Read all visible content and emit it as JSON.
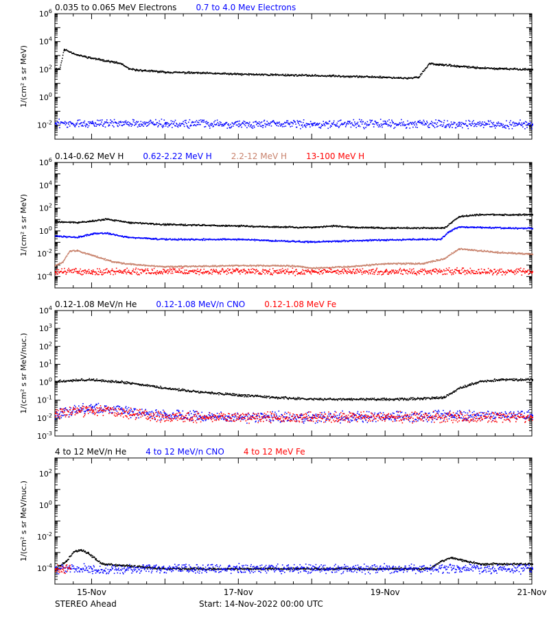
{
  "chart_data": [
    {
      "type": "scatter",
      "ylabel": "1/(cm² s sr MeV)",
      "yscale": "log",
      "ylim": [
        0.001,
        1000000
      ],
      "ytick_labels": [
        "10^-2",
        "10^0",
        "10^2",
        "10^4",
        "10^6"
      ],
      "series": [
        {
          "name": "0.035 to 0.065 MeV Electrons",
          "color": "#000000",
          "x": [
            0.5,
            0.56,
            0.62,
            0.7,
            0.8,
            1.0,
            1.2,
            1.4,
            1.5,
            1.6,
            2.0,
            2.5,
            3.0,
            3.5,
            4.0,
            4.5,
            5.0,
            5.3,
            5.45,
            5.6,
            5.7,
            5.8,
            6.0,
            6.3,
            6.6,
            7.0
          ],
          "values": [
            120,
            120,
            3000,
            2000,
            1200,
            700,
            450,
            280,
            120,
            100,
            70,
            60,
            50,
            45,
            40,
            35,
            30,
            25,
            30,
            300,
            250,
            230,
            180,
            140,
            120,
            110
          ]
        },
        {
          "name": "0.7 to 4.0 Mev Electrons",
          "color": "#0000ff",
          "x": [
            0.5,
            1.0,
            2.0,
            3.0,
            4.0,
            5.0,
            6.0,
            7.0
          ],
          "values": [
            0.015,
            0.015,
            0.014,
            0.014,
            0.013,
            0.014,
            0.013,
            0.013
          ]
        }
      ]
    },
    {
      "type": "scatter",
      "ylabel": "1/(cm² s sr MeV)",
      "yscale": "log",
      "ylim": [
        1e-05,
        1000000
      ],
      "ytick_labels": [
        "10^-4",
        "10^-2",
        "10^0",
        "10^2",
        "10^4",
        "10^6"
      ],
      "series": [
        {
          "name": "0.14-0.62 MeV H",
          "color": "#000000",
          "x": [
            0.5,
            0.8,
            1.0,
            1.2,
            1.5,
            2.0,
            2.5,
            3.0,
            3.5,
            4.0,
            4.3,
            4.6,
            5.0,
            5.5,
            5.8,
            5.9,
            6.0,
            6.3,
            6.6,
            7.0
          ],
          "values": [
            7,
            6,
            8,
            12,
            6,
            4,
            3.5,
            3,
            2.5,
            2.2,
            3,
            2.2,
            2,
            2,
            2,
            6,
            20,
            30,
            28,
            30
          ]
        },
        {
          "name": "0.62-2.22 MeV H",
          "color": "#0000ff",
          "x": [
            0.5,
            0.8,
            1.0,
            1.2,
            1.5,
            2.0,
            2.5,
            3.0,
            3.5,
            4.0,
            4.5,
            5.0,
            5.5,
            5.75,
            5.85,
            6.0,
            6.3,
            6.6,
            7.0
          ],
          "values": [
            0.4,
            0.3,
            0.6,
            0.7,
            0.3,
            0.2,
            0.2,
            0.2,
            0.15,
            0.12,
            0.15,
            0.18,
            0.2,
            0.2,
            0.8,
            2.5,
            2.2,
            2,
            1.8
          ]
        },
        {
          "name": "2.2-12 MeV H",
          "color": "#c8826c",
          "x": [
            0.5,
            0.6,
            0.7,
            0.8,
            1.0,
            1.3,
            1.6,
            2.0,
            2.5,
            3.0,
            3.5,
            3.8,
            4.0,
            4.5,
            5.0,
            5.5,
            5.8,
            6.0,
            6.5,
            7.0
          ],
          "values": [
            0.001,
            0.002,
            0.02,
            0.02,
            0.008,
            0.002,
            0.0012,
            0.0008,
            0.0009,
            0.001,
            0.001,
            0.0009,
            0.0006,
            0.0008,
            0.0015,
            0.0015,
            0.004,
            0.03,
            0.015,
            0.01
          ]
        },
        {
          "name": "13-100 MeV H",
          "color": "#ff0000",
          "x": [
            0.5,
            1.0,
            2.0,
            3.0,
            4.0,
            5.0,
            6.0,
            7.0
          ],
          "values": [
            0.0003,
            0.0003,
            0.0003,
            0.0003,
            0.0003,
            0.0003,
            0.0003,
            0.0003
          ]
        }
      ]
    },
    {
      "type": "scatter",
      "ylabel": "1/(cm² s sr MeV/nuc.)",
      "yscale": "log",
      "ylim": [
        0.001,
        10000
      ],
      "ytick_labels": [
        "10^-3",
        "10^-2",
        "10^-1",
        "10^0",
        "10^1",
        "10^2",
        "10^3",
        "10^4"
      ],
      "series": [
        {
          "name": "0.12-1.08 MeV/n He",
          "color": "#000000",
          "x": [
            0.5,
            1.0,
            1.5,
            2.0,
            2.5,
            3.0,
            3.5,
            4.0,
            4.5,
            5.0,
            5.5,
            5.8,
            6.0,
            6.3,
            6.6,
            7.0
          ],
          "values": [
            1.2,
            1.5,
            1.0,
            0.5,
            0.3,
            0.2,
            0.15,
            0.12,
            0.12,
            0.12,
            0.13,
            0.15,
            0.5,
            1.2,
            1.5,
            1.5
          ]
        },
        {
          "name": "0.12-1.08 MeV/n CNO",
          "color": "#0000ff",
          "x": [
            0.5,
            1.0,
            2.0,
            3.0,
            4.0,
            5.0,
            6.0,
            7.0
          ],
          "values": [
            0.02,
            0.04,
            0.015,
            0.012,
            0.012,
            0.012,
            0.015,
            0.015
          ]
        },
        {
          "name": "0.12-1.08 MeV Fe",
          "color": "#ff0000",
          "x": [
            0.5,
            1.0,
            2.0,
            3.0,
            4.0,
            5.0,
            6.0,
            7.0
          ],
          "values": [
            0.02,
            0.03,
            0.012,
            0.012,
            0.012,
            0.012,
            0.012,
            0.012
          ]
        }
      ]
    },
    {
      "type": "scatter",
      "ylabel": "1/(cm² s sr MeV/nuc.)",
      "yscale": "log",
      "ylim": [
        1e-05,
        1000
      ],
      "ytick_labels": [
        "10^-4",
        "10^-2",
        "10^0",
        "10^2"
      ],
      "series": [
        {
          "name": "4 to 12 MeV/n He",
          "color": "#000000",
          "x": [
            0.5,
            0.65,
            0.75,
            0.85,
            0.95,
            1.05,
            1.15,
            2.0,
            3.0,
            4.0,
            5.0,
            5.6,
            5.75,
            5.9,
            6.1,
            6.3,
            6.6,
            7.0
          ],
          "values": [
            0.0001,
            0.0003,
            0.0012,
            0.0015,
            0.001,
            0.0004,
            0.0002,
            0.0001,
            0.0001,
            0.0001,
            0.0001,
            0.0001,
            0.0003,
            0.0005,
            0.0003,
            0.0002,
            0.0002,
            0.0002
          ]
        },
        {
          "name": "4 to 12 MeV/n CNO",
          "color": "#0000ff",
          "x": [
            0.5,
            1.0,
            2.0,
            3.0,
            4.0,
            5.0,
            6.0,
            7.0
          ],
          "values": [
            0.0001,
            0.0001,
            0.0001,
            0.0001,
            0.0001,
            0.0001,
            0.0001,
            0.0001
          ]
        },
        {
          "name": "4 to 12 MeV Fe",
          "color": "#ff0000",
          "x": [
            0.5,
            0.6,
            0.7
          ],
          "values": [
            0.0001,
            0.0001,
            0.0001
          ]
        }
      ]
    }
  ],
  "x_axis": {
    "xlim": [
      0.5,
      7.0
    ],
    "ticks": [
      {
        "x": 1,
        "label": "15-Nov"
      },
      {
        "x": 3,
        "label": "17-Nov"
      },
      {
        "x": 5,
        "label": "19-Nov"
      },
      {
        "x": 7,
        "label": "21-Nov"
      }
    ]
  },
  "footer": {
    "left": "STEREO Ahead",
    "center": "Start: 14-Nov-2022 00:00 UTC"
  }
}
